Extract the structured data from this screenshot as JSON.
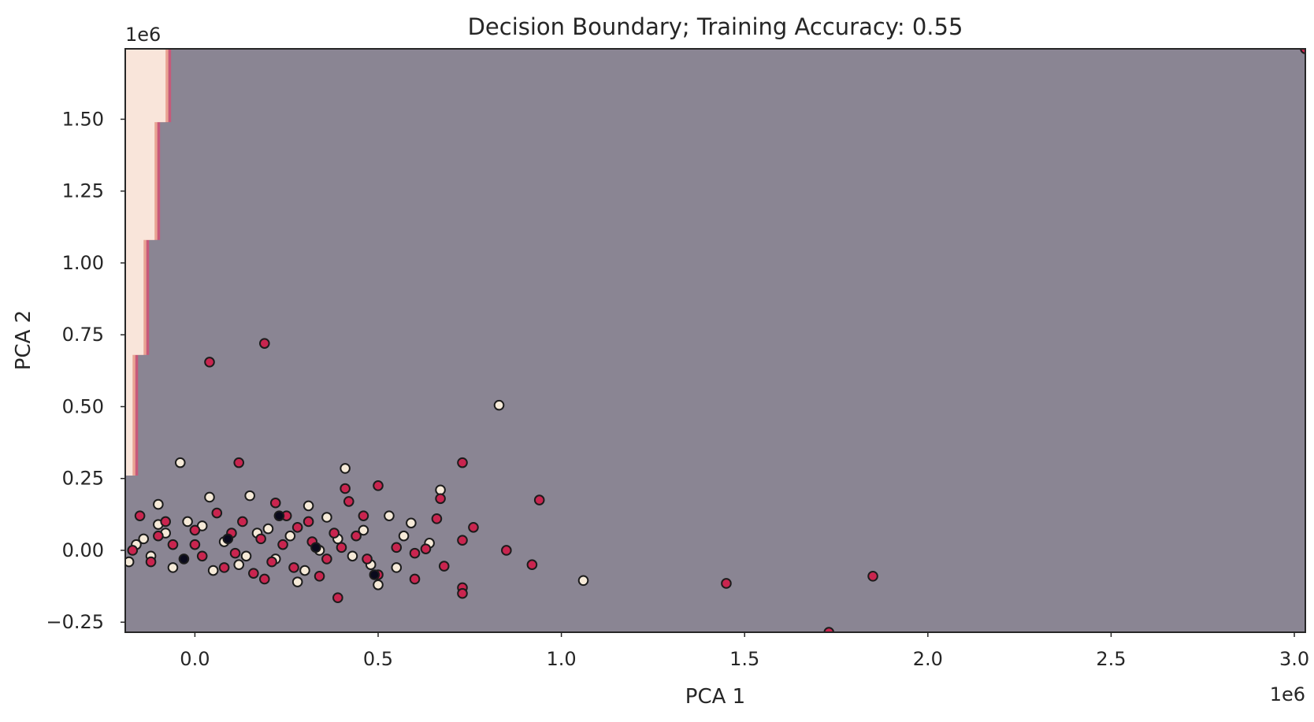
{
  "chart_data": {
    "type": "scatter",
    "title": "Decision Boundary; Training Accuracy: 0.55",
    "xlabel": "PCA 1",
    "ylabel": "PCA 2",
    "x_offset_label": "1e6",
    "y_offset_label": "1e6",
    "xlim": [
      -0.19,
      3.03
    ],
    "ylim": [
      -0.285,
      1.745
    ],
    "x_ticks": [
      {
        "value": 0.0,
        "label": "0.0"
      },
      {
        "value": 0.5,
        "label": "0.5"
      },
      {
        "value": 1.0,
        "label": "1.0"
      },
      {
        "value": 1.5,
        "label": "1.5"
      },
      {
        "value": 2.0,
        "label": "2.0"
      },
      {
        "value": 2.5,
        "label": "2.5"
      },
      {
        "value": 3.0,
        "label": "3.0"
      }
    ],
    "y_ticks": [
      {
        "value": -0.25,
        "label": "−0.25"
      },
      {
        "value": 0.0,
        "label": "0.00"
      },
      {
        "value": 0.25,
        "label": "0.25"
      },
      {
        "value": 0.5,
        "label": "0.50"
      },
      {
        "value": 0.75,
        "label": "0.75"
      },
      {
        "value": 1.0,
        "label": "1.00"
      },
      {
        "value": 1.25,
        "label": "1.25"
      },
      {
        "value": 1.5,
        "label": "1.50"
      }
    ],
    "grid": false,
    "colors": {
      "background_region": "#8a8593",
      "region_light": "#f9e5da",
      "region_edge_1": "#e9a393",
      "region_edge_2": "#c7597a",
      "class_light": "#f6ead8",
      "class_red": "#c9254f",
      "class_dark": "#0a0a1c",
      "marker_edge": "#1c1c1c",
      "axes_edge": "#262626"
    },
    "decision_region": {
      "label": "light region",
      "boundary": [
        [
          -0.19,
          0.26
        ],
        [
          -0.17,
          0.26
        ],
        [
          -0.17,
          0.68
        ],
        [
          -0.14,
          0.68
        ],
        [
          -0.14,
          1.08
        ],
        [
          -0.11,
          1.08
        ],
        [
          -0.11,
          1.49
        ],
        [
          -0.08,
          1.49
        ],
        [
          -0.08,
          1.745
        ],
        [
          -0.19,
          1.745
        ]
      ]
    },
    "series": [
      {
        "class": "light",
        "points": [
          [
            -0.04,
            0.305
          ],
          [
            0.83,
            0.505
          ],
          [
            0.41,
            0.285
          ],
          [
            0.67,
            0.21
          ],
          [
            0.04,
            0.185
          ],
          [
            0.15,
            0.19
          ],
          [
            0.31,
            0.155
          ],
          [
            -0.1,
            0.16
          ],
          [
            0.53,
            0.12
          ],
          [
            0.36,
            0.115
          ],
          [
            0.59,
            0.095
          ],
          [
            0.57,
            0.05
          ],
          [
            0.02,
            0.085
          ],
          [
            0.2,
            0.075
          ],
          [
            1.06,
            -0.105
          ],
          [
            0.5,
            -0.12
          ],
          [
            0.55,
            -0.06
          ],
          [
            0.28,
            -0.11
          ],
          [
            -0.18,
            -0.04
          ],
          [
            -0.12,
            -0.02
          ],
          [
            -0.14,
            0.04
          ],
          [
            -0.08,
            0.06
          ],
          [
            0.08,
            0.03
          ],
          [
            0.34,
            0.0
          ],
          [
            0.12,
            -0.05
          ],
          [
            0.26,
            0.05
          ],
          [
            0.43,
            -0.02
          ],
          [
            -0.16,
            0.02
          ],
          [
            0.46,
            0.07
          ],
          [
            0.64,
            0.025
          ],
          [
            0.05,
            -0.07
          ],
          [
            -0.06,
            -0.06
          ],
          [
            0.22,
            -0.03
          ],
          [
            0.39,
            0.04
          ],
          [
            0.17,
            0.06
          ],
          [
            -0.02,
            0.1
          ],
          [
            -0.1,
            0.09
          ],
          [
            0.3,
            -0.07
          ],
          [
            0.14,
            -0.02
          ],
          [
            0.48,
            -0.05
          ]
        ]
      },
      {
        "class": "red",
        "points": [
          [
            0.19,
            0.72
          ],
          [
            0.04,
            0.655
          ],
          [
            0.12,
            0.305
          ],
          [
            0.73,
            0.305
          ],
          [
            0.5,
            0.225
          ],
          [
            0.41,
            0.215
          ],
          [
            0.94,
            0.175
          ],
          [
            0.42,
            0.17
          ],
          [
            0.67,
            0.18
          ],
          [
            0.22,
            0.165
          ],
          [
            0.76,
            0.08
          ],
          [
            0.46,
            0.12
          ],
          [
            0.66,
            0.11
          ],
          [
            0.85,
            0.0
          ],
          [
            0.92,
            -0.05
          ],
          [
            0.73,
            0.035
          ],
          [
            1.45,
            -0.115
          ],
          [
            1.85,
            -0.09
          ],
          [
            1.73,
            -0.285
          ],
          [
            0.73,
            -0.13
          ],
          [
            0.73,
            -0.15
          ],
          [
            0.39,
            -0.165
          ],
          [
            0.68,
            -0.055
          ],
          [
            0.6,
            -0.1
          ],
          [
            0.6,
            -0.01
          ],
          [
            0.63,
            0.005
          ],
          [
            0.5,
            -0.085
          ],
          [
            -0.15,
            0.12
          ],
          [
            -0.08,
            0.1
          ],
          [
            0.0,
            0.07
          ],
          [
            0.06,
            0.13
          ],
          [
            0.1,
            0.06
          ],
          [
            0.18,
            0.04
          ],
          [
            0.24,
            0.02
          ],
          [
            0.28,
            0.08
          ],
          [
            0.32,
            0.03
          ],
          [
            0.36,
            -0.03
          ],
          [
            0.4,
            0.01
          ],
          [
            0.44,
            0.05
          ],
          [
            -0.12,
            -0.04
          ],
          [
            -0.06,
            0.02
          ],
          [
            0.02,
            -0.02
          ],
          [
            0.08,
            -0.06
          ],
          [
            0.16,
            -0.08
          ],
          [
            0.21,
            -0.04
          ],
          [
            0.27,
            -0.06
          ],
          [
            0.34,
            -0.09
          ],
          [
            -0.17,
            0.0
          ],
          [
            0.0,
            0.02
          ],
          [
            0.13,
            0.1
          ],
          [
            0.25,
            0.12
          ],
          [
            0.47,
            -0.03
          ],
          [
            0.55,
            0.01
          ],
          [
            -0.1,
            0.05
          ],
          [
            0.11,
            -0.01
          ],
          [
            0.19,
            -0.1
          ],
          [
            0.31,
            0.1
          ],
          [
            0.38,
            0.06
          ],
          [
            3.03,
            1.745
          ]
        ]
      },
      {
        "class": "dark",
        "points": [
          [
            0.23,
            0.12
          ],
          [
            0.49,
            -0.085
          ],
          [
            0.09,
            0.04
          ],
          [
            -0.03,
            -0.03
          ],
          [
            0.33,
            0.01
          ]
        ]
      }
    ]
  }
}
